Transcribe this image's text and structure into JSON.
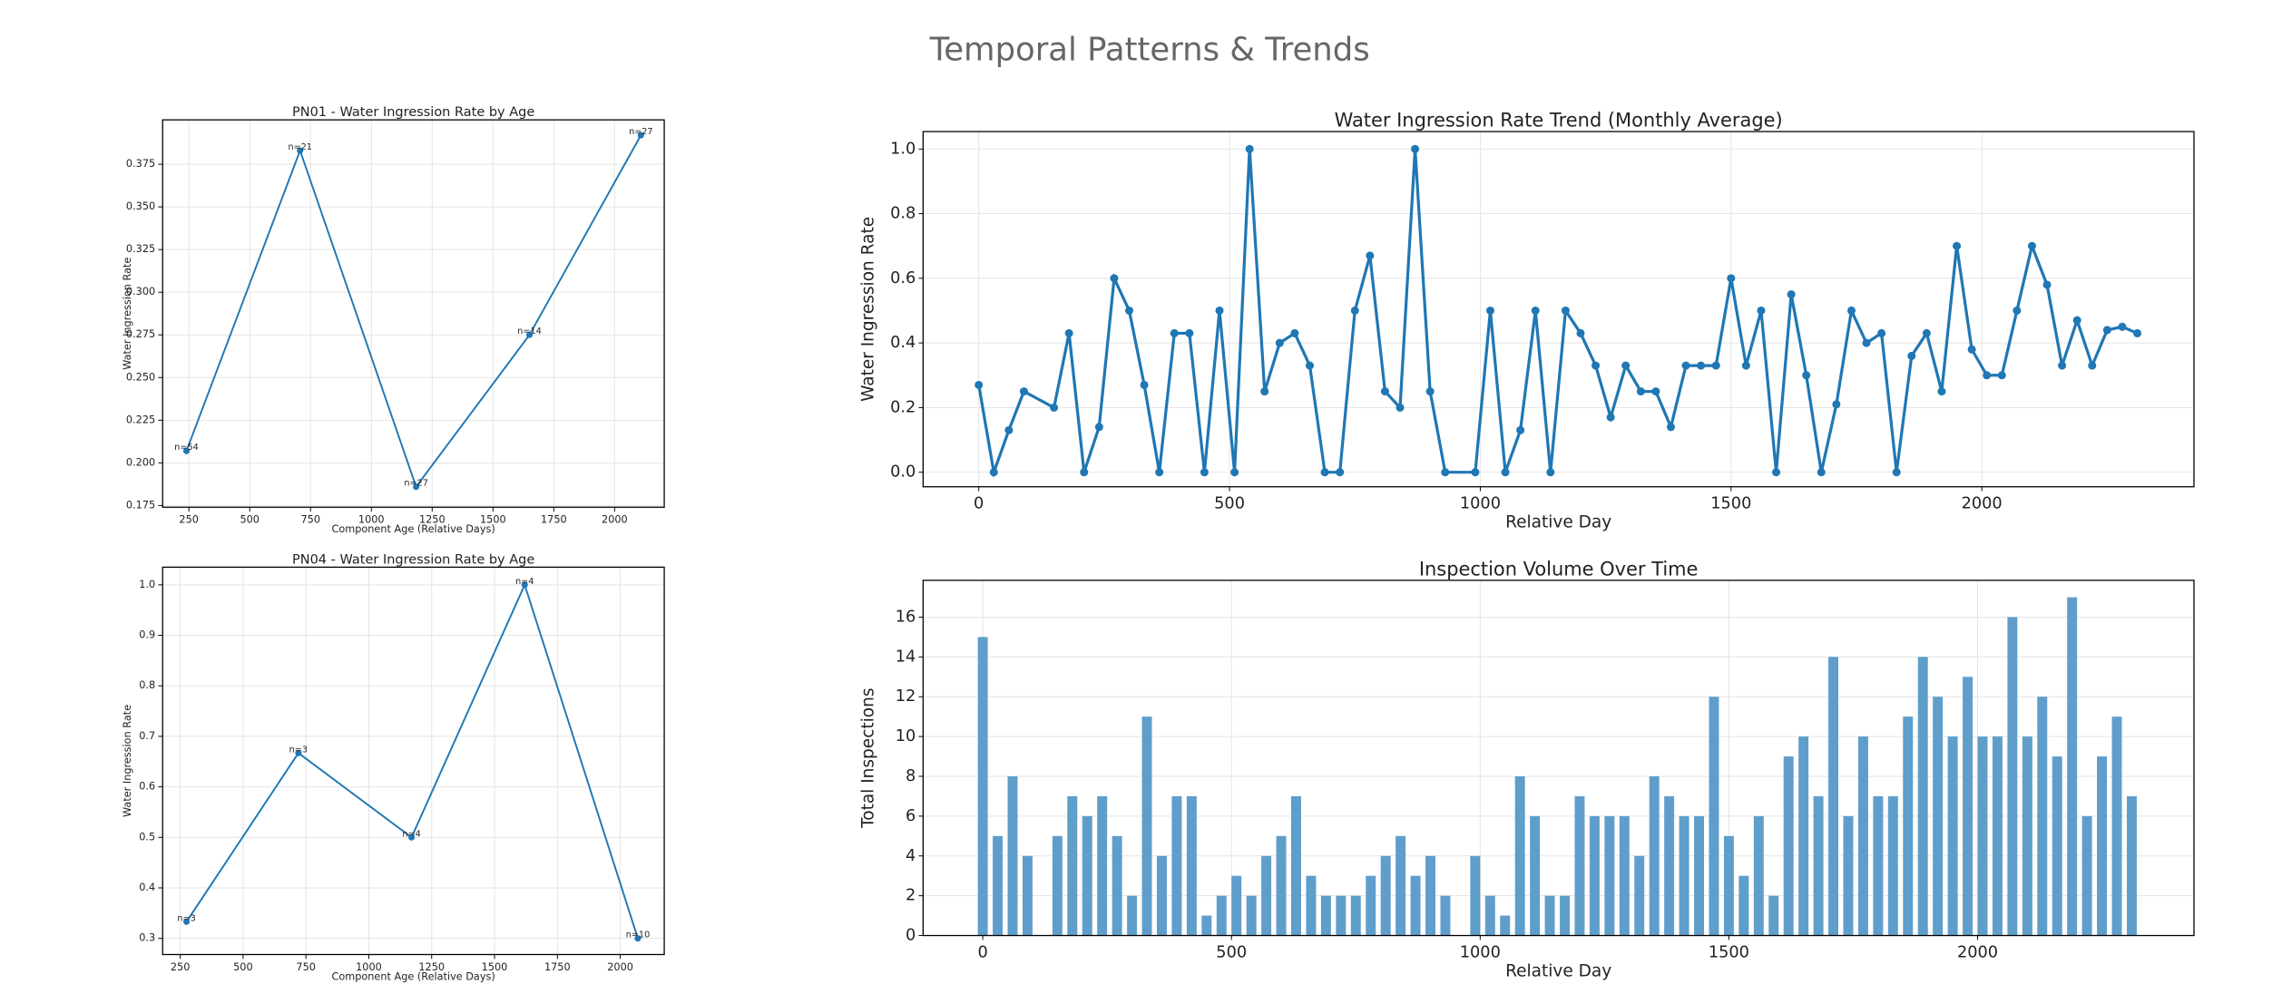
{
  "title": "Temporal Patterns & Trends",
  "chart_data": [
    {
      "type": "line",
      "title": "PN01 - Water Ingression Rate by Age",
      "xlabel": "Component Age (Relative Days)",
      "ylabel": "Water Ingression Rate",
      "color": "#1f77b4",
      "grid": true,
      "x": [
        240,
        707,
        1184,
        1650,
        2108
      ],
      "values": [
        0.207,
        0.383,
        0.186,
        0.275,
        0.392
      ],
      "annotations": [
        "n=54",
        "n=21",
        "n=27",
        "n=14",
        "n=27"
      ],
      "xlim": [
        142,
        2204
      ],
      "xticks": [
        250,
        500,
        750,
        1000,
        1250,
        1500,
        1750,
        2000
      ],
      "ylim": [
        0.174,
        0.401
      ],
      "yticks": [
        0.175,
        {
          "value": 0.2,
          "label": "0.200"
        },
        0.225,
        {
          "value": 0.25,
          "label": "0.250"
        },
        0.275,
        {
          "value": 0.3,
          "label": "0.300"
        },
        0.325,
        {
          "value": 0.35,
          "label": "0.350"
        },
        0.375
      ]
    },
    {
      "type": "line",
      "title": "PN04 - Water Ingression Rate by Age",
      "xlabel": "Component Age (Relative Days)",
      "ylabel": "Water Ingression Rate",
      "color": "#1f77b4",
      "grid": true,
      "x": [
        275,
        720,
        1170,
        1620,
        2070
      ],
      "values": [
        0.333,
        0.667,
        0.5,
        1.0,
        0.3
      ],
      "annotations": [
        "n=3",
        "n=3",
        "n=4",
        "n=4",
        "n=10"
      ],
      "xlim": [
        180,
        2175
      ],
      "xticks": [
        250,
        500,
        750,
        1000,
        1250,
        1500,
        1750,
        2000
      ],
      "ylim": [
        0.268,
        1.035
      ],
      "yticks": [
        0.3,
        0.4,
        0.5,
        0.6,
        0.7,
        0.8,
        0.9,
        {
          "value": 1.0,
          "label": "1.0"
        }
      ]
    },
    {
      "type": "line",
      "title": "Water Ingression Rate Trend (Monthly Average)",
      "xlabel": "Relative Day",
      "ylabel": "Water Ingression Rate",
      "color": "#1f77b4",
      "grid": true,
      "x": [
        0,
        30,
        60,
        90,
        150,
        180,
        210,
        240,
        270,
        300,
        330,
        360,
        390,
        420,
        450,
        480,
        510,
        540,
        570,
        600,
        630,
        660,
        690,
        720,
        750,
        780,
        810,
        840,
        870,
        900,
        930,
        990,
        1020,
        1050,
        1080,
        1110,
        1140,
        1170,
        1200,
        1230,
        1260,
        1290,
        1320,
        1350,
        1380,
        1410,
        1440,
        1470,
        1500,
        1530,
        1560,
        1590,
        1620,
        1650,
        1680,
        1710,
        1740,
        1770,
        1800,
        1830,
        1860,
        1890,
        1920,
        1950,
        1980,
        2010,
        2040,
        2070,
        2100,
        2130,
        2160,
        2190,
        2220,
        2250,
        2280,
        2310
      ],
      "values": [
        0.27,
        0,
        0.13,
        0.25,
        0.2,
        0.43,
        0,
        0.14,
        0.6,
        0.5,
        0.27,
        0,
        0.43,
        0.43,
        0,
        0.5,
        0,
        1.0,
        0.25,
        0.4,
        0.43,
        0.33,
        0,
        0,
        0.5,
        0.67,
        0.25,
        0.2,
        1.0,
        0.25,
        0,
        0,
        0.5,
        0,
        0.13,
        0.5,
        0,
        0.5,
        0.43,
        0.33,
        0.17,
        0.33,
        0.25,
        0.25,
        0.14,
        0.33,
        0.33,
        0.33,
        0.6,
        0.33,
        0.5,
        0,
        0.55,
        0.3,
        0,
        0.21,
        0.5,
        0.4,
        0.43,
        0,
        0.36,
        0.43,
        0.25,
        0.7,
        0.38,
        0.3,
        0.3,
        0.5,
        0.7,
        0.58,
        0.33,
        0.47,
        0.33,
        0.44,
        0.45,
        0.43
      ],
      "xlim": [
        -111,
        2423
      ],
      "xticks": [
        0,
        500,
        1000,
        1500,
        2000
      ],
      "ylim": [
        -0.045,
        1.054
      ],
      "yticks": [
        {
          "value": 0,
          "label": "0.0"
        },
        0.2,
        0.4,
        0.6,
        0.8,
        {
          "value": 1.0,
          "label": "1.0"
        }
      ]
    },
    {
      "type": "bar",
      "title": "Inspection Volume Over Time",
      "xlabel": "Relative Day",
      "ylabel": "Total Inspections",
      "color": "#5f9ecb",
      "grid": true,
      "x": [
        0,
        30,
        60,
        90,
        150,
        180,
        210,
        240,
        270,
        300,
        330,
        360,
        390,
        420,
        450,
        480,
        510,
        540,
        570,
        600,
        630,
        660,
        690,
        720,
        750,
        780,
        810,
        840,
        870,
        900,
        930,
        990,
        1020,
        1050,
        1080,
        1110,
        1140,
        1170,
        1200,
        1230,
        1260,
        1290,
        1320,
        1350,
        1380,
        1410,
        1440,
        1470,
        1500,
        1530,
        1560,
        1590,
        1620,
        1650,
        1680,
        1710,
        1740,
        1770,
        1800,
        1830,
        1860,
        1890,
        1920,
        1950,
        1980,
        2010,
        2040,
        2070,
        2100,
        2130,
        2160,
        2190,
        2220,
        2250,
        2280,
        2310
      ],
      "values": [
        15,
        5,
        8,
        4,
        5,
        7,
        6,
        7,
        5,
        2,
        11,
        4,
        7,
        7,
        1,
        2,
        3,
        2,
        4,
        5,
        7,
        3,
        2,
        2,
        2,
        3,
        4,
        5,
        3,
        4,
        2,
        4,
        2,
        1,
        8,
        6,
        2,
        2,
        7,
        6,
        6,
        6,
        4,
        8,
        7,
        6,
        6,
        12,
        5,
        3,
        6,
        2,
        9,
        10,
        7,
        14,
        6,
        10,
        7,
        7,
        11,
        14,
        12,
        10,
        13,
        10,
        10,
        16,
        10,
        12,
        9,
        17,
        6,
        9,
        11,
        7
      ],
      "xlim": [
        -120,
        2435
      ],
      "xticks": [
        0,
        500,
        1000,
        1500,
        2000
      ],
      "ylim": [
        0,
        17.85
      ],
      "yticks": [
        0,
        2,
        4,
        6,
        8,
        10,
        12,
        14,
        16
      ]
    }
  ]
}
